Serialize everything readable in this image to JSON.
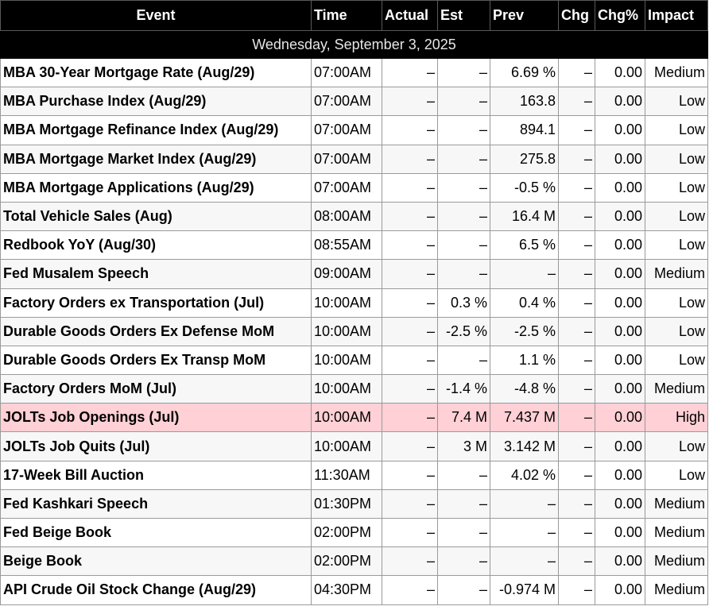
{
  "columns": {
    "event": "Event",
    "time": "Time",
    "actual": "Actual",
    "est": "Est",
    "prev": "Prev",
    "chg": "Chg",
    "chg_pct": "Chg%",
    "impact": "Impact"
  },
  "date_label": "Wednesday, September 3, 2025",
  "colors": {
    "header_bg": "#000000",
    "header_text": "#ffffff",
    "high_impact_row": "#ffd0d5",
    "row_alt": "#f7f7f7"
  },
  "rows": [
    {
      "event": "MBA 30-Year Mortgage Rate (Aug/29)",
      "time": "07:00AM",
      "actual": "–",
      "est": "–",
      "prev": "6.69 %",
      "chg": "–",
      "chg_pct": "0.00",
      "impact": "Medium"
    },
    {
      "event": "MBA Purchase Index (Aug/29)",
      "time": "07:00AM",
      "actual": "–",
      "est": "–",
      "prev": "163.8",
      "chg": "–",
      "chg_pct": "0.00",
      "impact": "Low"
    },
    {
      "event": "MBA Mortgage Refinance Index (Aug/29)",
      "time": "07:00AM",
      "actual": "–",
      "est": "–",
      "prev": "894.1",
      "chg": "–",
      "chg_pct": "0.00",
      "impact": "Low"
    },
    {
      "event": "MBA Mortgage Market Index (Aug/29)",
      "time": "07:00AM",
      "actual": "–",
      "est": "–",
      "prev": "275.8",
      "chg": "–",
      "chg_pct": "0.00",
      "impact": "Low"
    },
    {
      "event": "MBA Mortgage Applications (Aug/29)",
      "time": "07:00AM",
      "actual": "–",
      "est": "–",
      "prev": "-0.5 %",
      "chg": "–",
      "chg_pct": "0.00",
      "impact": "Low"
    },
    {
      "event": "Total Vehicle Sales (Aug)",
      "time": "08:00AM",
      "actual": "–",
      "est": "–",
      "prev": "16.4 M",
      "chg": "–",
      "chg_pct": "0.00",
      "impact": "Low"
    },
    {
      "event": "Redbook YoY (Aug/30)",
      "time": "08:55AM",
      "actual": "–",
      "est": "–",
      "prev": "6.5 %",
      "chg": "–",
      "chg_pct": "0.00",
      "impact": "Low"
    },
    {
      "event": "Fed Musalem Speech",
      "time": "09:00AM",
      "actual": "–",
      "est": "–",
      "prev": "–",
      "chg": "–",
      "chg_pct": "0.00",
      "impact": "Medium"
    },
    {
      "event": "Factory Orders ex Transportation (Jul)",
      "time": "10:00AM",
      "actual": "–",
      "est": "0.3 %",
      "prev": "0.4 %",
      "chg": "–",
      "chg_pct": "0.00",
      "impact": "Low"
    },
    {
      "event": "Durable Goods Orders Ex Defense MoM",
      "time": "10:00AM",
      "actual": "–",
      "est": "-2.5 %",
      "prev": "-2.5 %",
      "chg": "–",
      "chg_pct": "0.00",
      "impact": "Low"
    },
    {
      "event": "Durable Goods Orders Ex Transp MoM",
      "time": "10:00AM",
      "actual": "–",
      "est": "–",
      "prev": "1.1 %",
      "chg": "–",
      "chg_pct": "0.00",
      "impact": "Low"
    },
    {
      "event": "Factory Orders MoM (Jul)",
      "time": "10:00AM",
      "actual": "–",
      "est": "-1.4 %",
      "prev": "-4.8 %",
      "chg": "–",
      "chg_pct": "0.00",
      "impact": "Medium"
    },
    {
      "event": "JOLTs Job Openings (Jul)",
      "time": "10:00AM",
      "actual": "–",
      "est": "7.4 M",
      "prev": "7.437 M",
      "chg": "–",
      "chg_pct": "0.00",
      "impact": "High"
    },
    {
      "event": "JOLTs Job Quits (Jul)",
      "time": "10:00AM",
      "actual": "–",
      "est": "3 M",
      "prev": "3.142 M",
      "chg": "–",
      "chg_pct": "0.00",
      "impact": "Low"
    },
    {
      "event": "17-Week Bill Auction",
      "time": "11:30AM",
      "actual": "–",
      "est": "–",
      "prev": "4.02 %",
      "chg": "–",
      "chg_pct": "0.00",
      "impact": "Low"
    },
    {
      "event": "Fed Kashkari Speech",
      "time": "01:30PM",
      "actual": "–",
      "est": "–",
      "prev": "–",
      "chg": "–",
      "chg_pct": "0.00",
      "impact": "Medium"
    },
    {
      "event": "Fed Beige Book",
      "time": "02:00PM",
      "actual": "–",
      "est": "–",
      "prev": "–",
      "chg": "–",
      "chg_pct": "0.00",
      "impact": "Medium"
    },
    {
      "event": "Beige Book",
      "time": "02:00PM",
      "actual": "–",
      "est": "–",
      "prev": "–",
      "chg": "–",
      "chg_pct": "0.00",
      "impact": "Medium"
    },
    {
      "event": "API Crude Oil Stock Change (Aug/29)",
      "time": "04:30PM",
      "actual": "–",
      "est": "–",
      "prev": "-0.974 M",
      "chg": "–",
      "chg_pct": "0.00",
      "impact": "Medium"
    }
  ]
}
